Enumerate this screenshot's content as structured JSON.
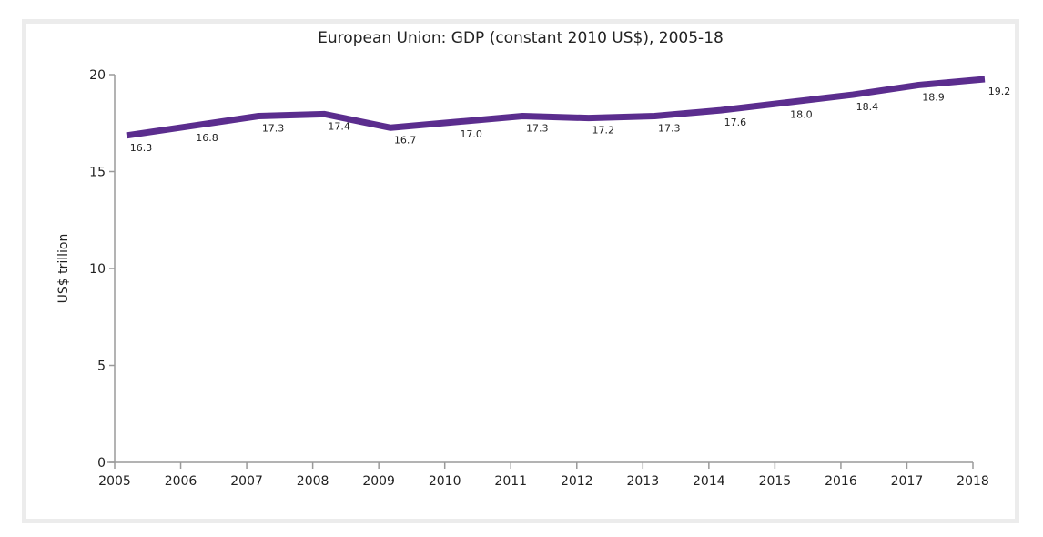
{
  "chart_data": {
    "type": "line",
    "title": "European Union: GDP (constant 2010 US$), 2005-18",
    "xlabel": "",
    "ylabel": "US$ trillion",
    "x": [
      "2005",
      "2006",
      "2007",
      "2008",
      "2009",
      "2010",
      "2011",
      "2012",
      "2013",
      "2014",
      "2015",
      "2016",
      "2017",
      "2018"
    ],
    "series": [
      {
        "name": "GDP",
        "values": [
          16.3,
          16.8,
          17.3,
          17.4,
          16.7,
          17.0,
          17.3,
          17.2,
          17.3,
          17.6,
          18.0,
          18.4,
          18.9,
          19.2
        ],
        "labels": [
          "16.3",
          "16.8",
          "17.3",
          "17.4",
          "16.7",
          "17.0",
          "17.3",
          "17.2",
          "17.3",
          "17.6",
          "18.0",
          "18.4",
          "18.9",
          "19.2"
        ],
        "color": "#5b2d8e"
      }
    ],
    "yticks": [
      "0",
      "5",
      "10",
      "15",
      "20"
    ],
    "ytick_values": [
      0,
      5,
      10,
      15,
      20
    ],
    "ylim": [
      0,
      20
    ],
    "grid": false,
    "legend": "none"
  }
}
